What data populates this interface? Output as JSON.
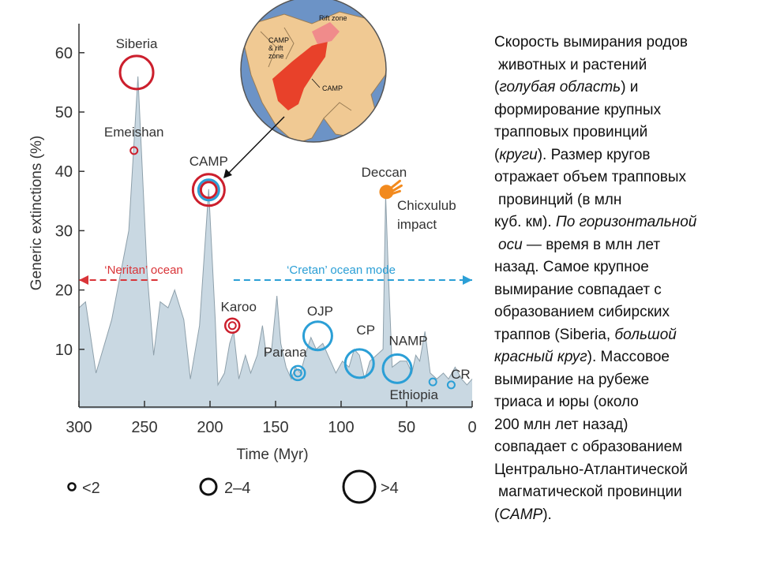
{
  "chart_data": {
    "type": "area",
    "ylabel": "Generic extinctions (%)",
    "xlabel": "Time (Myr)",
    "xlim": [
      300,
      0
    ],
    "ylim": [
      0,
      60
    ],
    "xticks": [
      300,
      250,
      200,
      150,
      100,
      50,
      0
    ],
    "yticks": [
      10,
      20,
      30,
      40,
      50,
      60
    ],
    "fill_color": "#c9d8e2",
    "points": [
      [
        300,
        17
      ],
      [
        295,
        18
      ],
      [
        287,
        6
      ],
      [
        275,
        15
      ],
      [
        262,
        30
      ],
      [
        255,
        56
      ],
      [
        248,
        23
      ],
      [
        243,
        9
      ],
      [
        238,
        18
      ],
      [
        232,
        17
      ],
      [
        227,
        20
      ],
      [
        220,
        15
      ],
      [
        215,
        5
      ],
      [
        208,
        14
      ],
      [
        201,
        37
      ],
      [
        196,
        15
      ],
      [
        194,
        4
      ],
      [
        189,
        6
      ],
      [
        185,
        11
      ],
      [
        182,
        13
      ],
      [
        178,
        5
      ],
      [
        173,
        9
      ],
      [
        169,
        6
      ],
      [
        164,
        9
      ],
      [
        160,
        14
      ],
      [
        157,
        9
      ],
      [
        153,
        10
      ],
      [
        149,
        19
      ],
      [
        146,
        11
      ],
      [
        142,
        7
      ],
      [
        138,
        5
      ],
      [
        135,
        7
      ],
      [
        131,
        6
      ],
      [
        126,
        10
      ],
      [
        123,
        12
      ],
      [
        119,
        10
      ],
      [
        114,
        11
      ],
      [
        110,
        9
      ],
      [
        104,
        6
      ],
      [
        99,
        8
      ],
      [
        94,
        7
      ],
      [
        90,
        10
      ],
      [
        86,
        9
      ],
      [
        82,
        5
      ],
      [
        78,
        8
      ],
      [
        73,
        9
      ],
      [
        68,
        10
      ],
      [
        66,
        36
      ],
      [
        64,
        23
      ],
      [
        61,
        7
      ],
      [
        55,
        8
      ],
      [
        50,
        8
      ],
      [
        46,
        6
      ],
      [
        43,
        9
      ],
      [
        40,
        8
      ],
      [
        36,
        13
      ],
      [
        32,
        6
      ],
      [
        27,
        5
      ],
      [
        22,
        6
      ],
      [
        18,
        5
      ],
      [
        13,
        7
      ],
      [
        8,
        5
      ],
      [
        4,
        4
      ],
      [
        0,
        5
      ]
    ],
    "lips": [
      {
        "name": "Siberia",
        "x": 256,
        "y": 56,
        "size": ">4",
        "color": "#cc1f2d"
      },
      {
        "name": "Emeishan",
        "x": 258,
        "y": 43.5,
        "size": "<2",
        "color": "#cc1f2d"
      },
      {
        "name": "CAMP",
        "x": 201,
        "y": 37,
        "size": "2–4",
        "color": "#cc1f2d"
      },
      {
        "name": "Karoo",
        "x": 183,
        "y": 14,
        "size": "<2",
        "color": "#cc1f2d"
      },
      {
        "name": "Parana",
        "x": 133,
        "y": 6,
        "size": "<2",
        "color": "#2b9fd6"
      },
      {
        "name": "OJP",
        "x": 116,
        "y": 12,
        "size": ">4",
        "color": "#2b9fd6"
      },
      {
        "name": "CP",
        "x": 86,
        "y": 8,
        "size": ">4",
        "color": "#2b9fd6"
      },
      {
        "name": "NAMP",
        "x": 56,
        "y": 7,
        "size": ">4",
        "color": "#2b9fd6"
      },
      {
        "name": "Ethiopia",
        "x": 30,
        "y": 4.5,
        "size": "<2",
        "color": "#2b9fd6"
      },
      {
        "name": "CR",
        "x": 16,
        "y": 4,
        "size": "<2",
        "color": "#2b9fd6"
      }
    ],
    "impact": {
      "name_lines": [
        "Chicxulub",
        "impact"
      ],
      "x": 66,
      "y": 36,
      "color": "#f28a1e"
    },
    "deccan_label": "Deccan",
    "modes": [
      {
        "label": "‘Neritan’ ocean",
        "color": "#d93438",
        "from": 240,
        "to": 300
      },
      {
        "label": "‘Cretan’ ocean mode",
        "color": "#2b9fd6",
        "from": 182,
        "to": 0
      }
    ],
    "legend": {
      "labels": [
        "<2",
        "2–4",
        ">4"
      ],
      "placement": "bottom"
    }
  },
  "inset_map": {
    "labels": {
      "rift": "Rift zone",
      "camp_rift": [
        "CAMP",
        "& rift",
        "zone"
      ],
      "camp": "CAMP"
    },
    "colors": {
      "ocean": "#6c93c6",
      "land": "#f0c993",
      "camp": "#e8412a",
      "rift": "#f08b8b"
    }
  },
  "description": {
    "line1": "Скорость вымирания родов",
    "line2": "животных и растений",
    "line3a": "(",
    "line3b": "голубая область",
    "line3c": ") и",
    "line4": "формирование крупных",
    "line5": "трапповых провинций",
    "line6a": "(",
    "line6b": "круги",
    "line6c": "). Размер кругов",
    "line7": "отражает объем трапповых",
    "line8": "провинций (в млн",
    "line9a": "куб. км). ",
    "line9b": "По горизонтальной",
    "line10a": "оси",
    "line10b": " — время в млн лет",
    "line11": "назад. Самое крупное",
    "line12": "вымирание совпадает с",
    "line13": "образованием сибирских",
    "line14a": "траппов (Siberia, ",
    "line14b": "большой",
    "line15a": "красный круг",
    "line15b": "). Массовое",
    "line16": "вымирание на рубеже",
    "line17": "триаса и юры (около",
    "line18": "200 млн лет назад)",
    "line19": "совпадает с образованием",
    "line20": "Центрально-Атлантической",
    "line21": "магматической провинции",
    "line22a": "(",
    "line22b": "CAMP",
    "line22c": ")."
  }
}
